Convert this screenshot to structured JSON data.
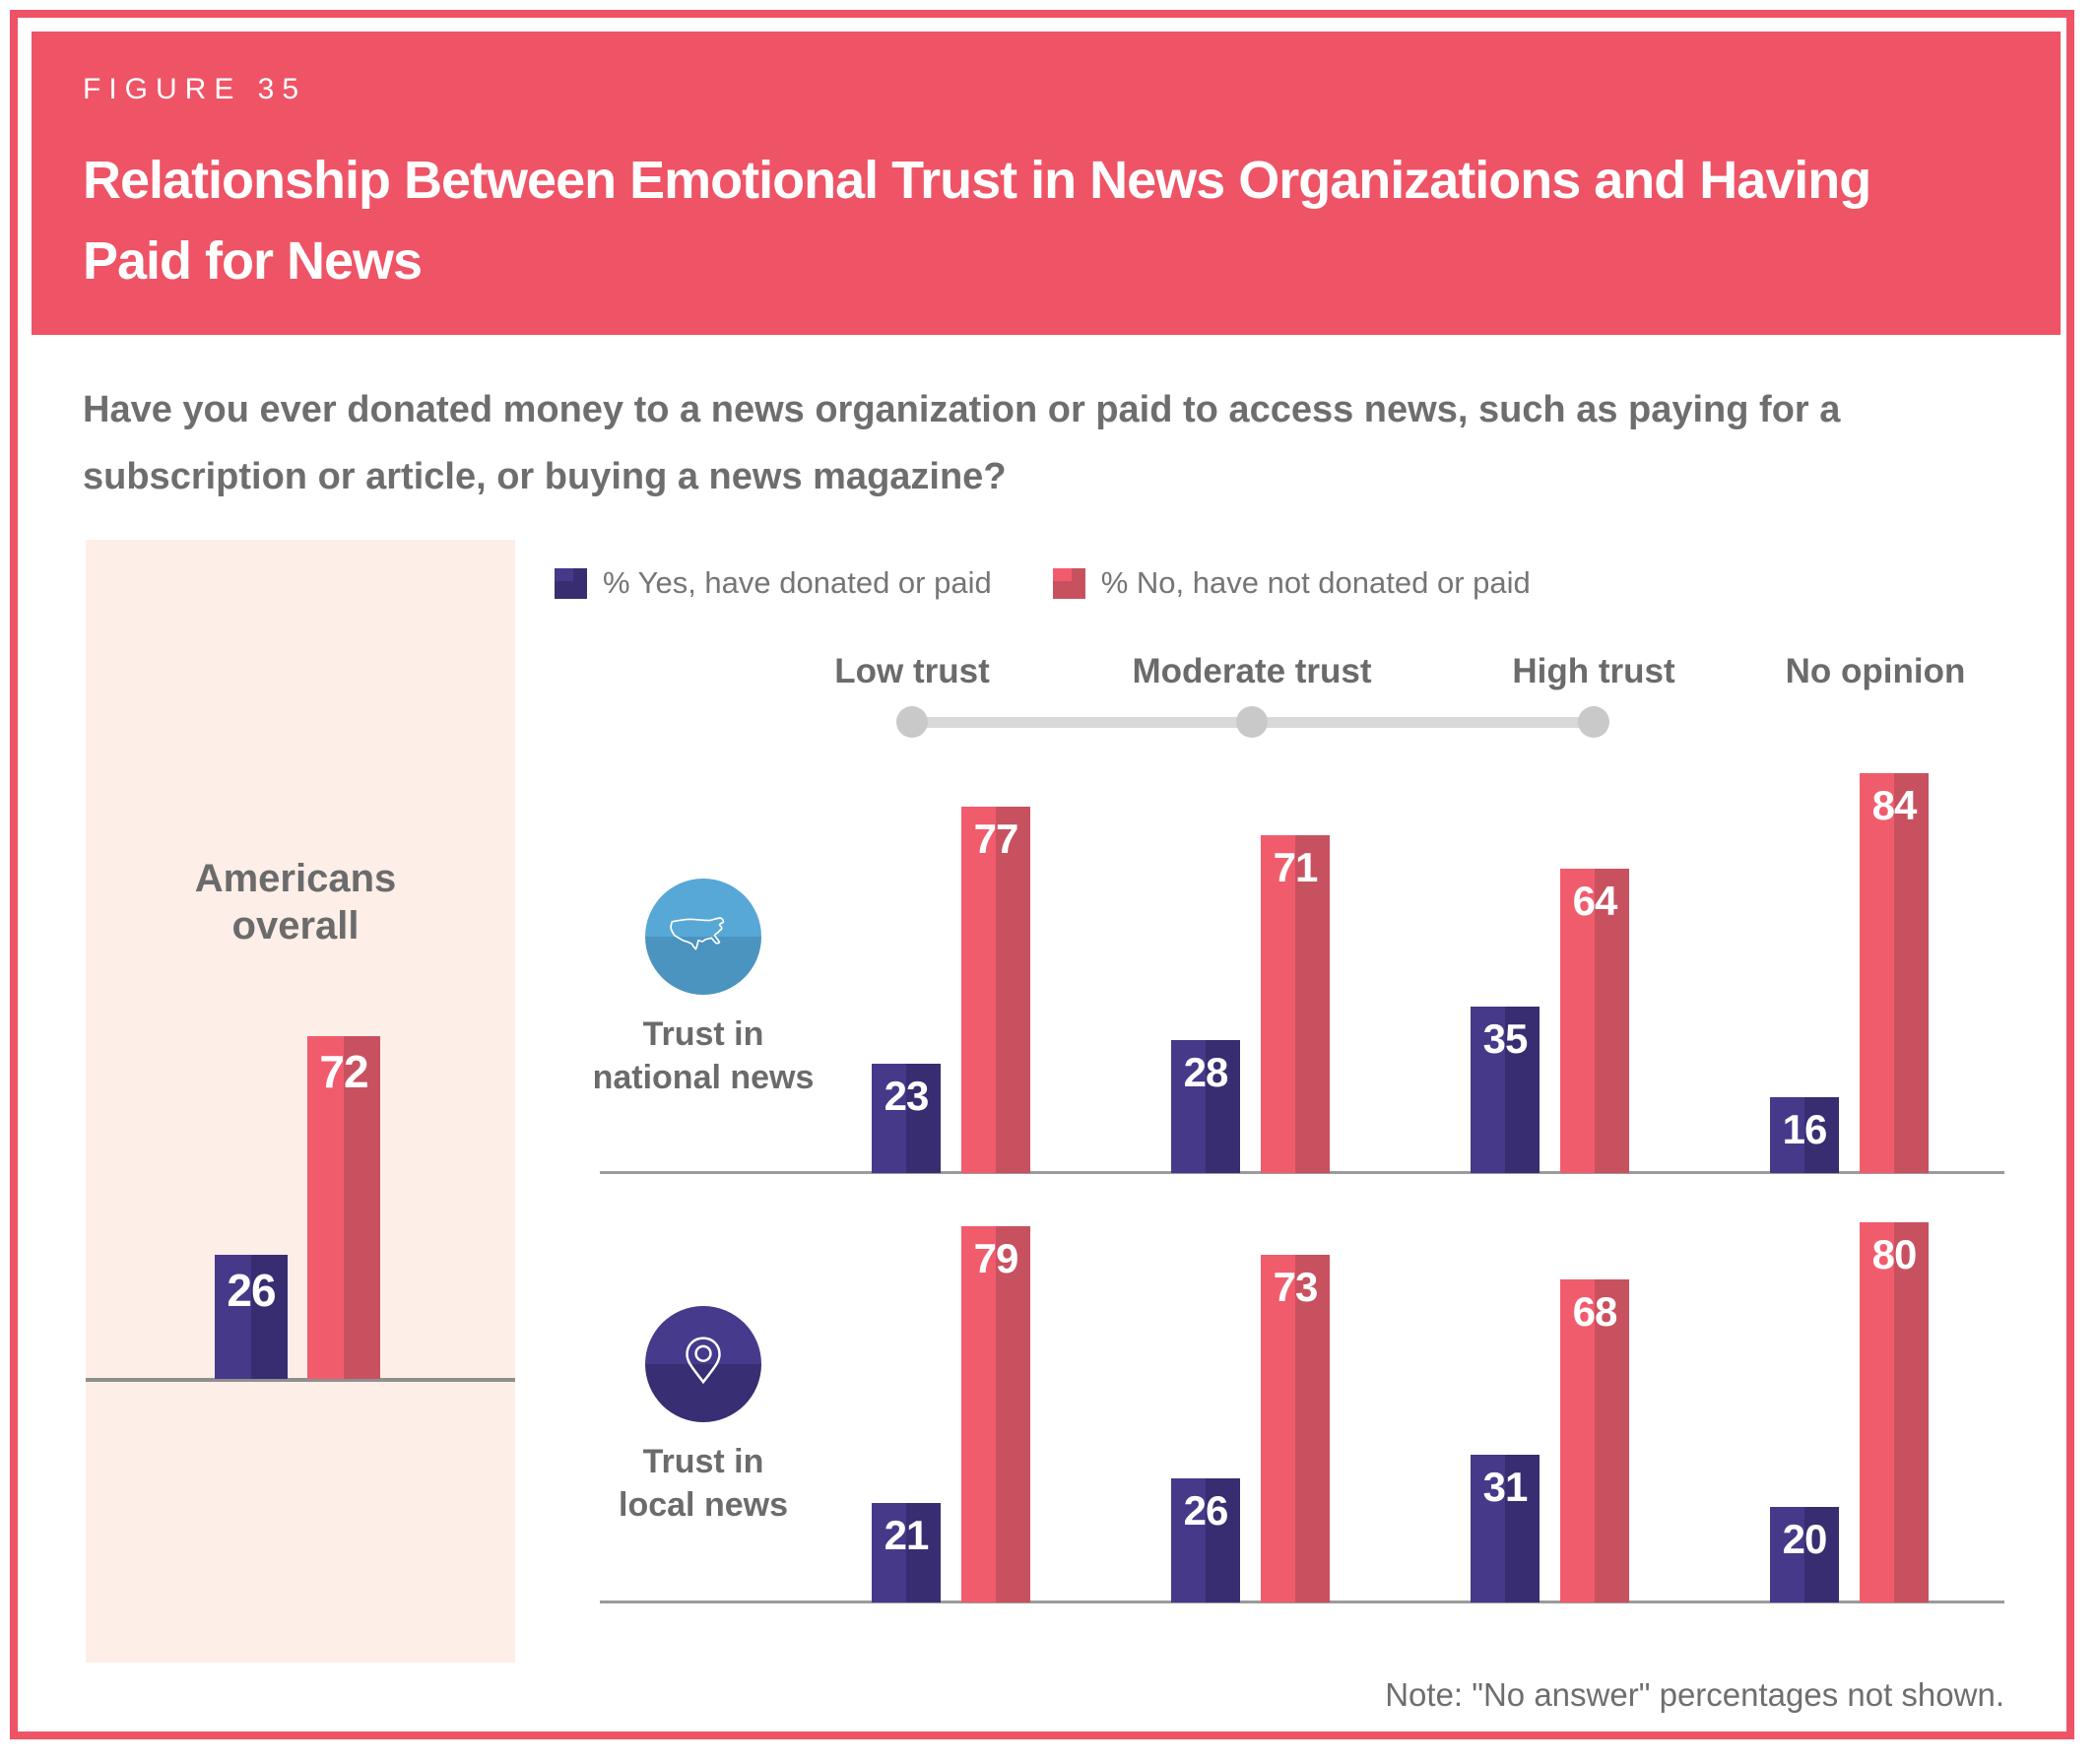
{
  "figure_label": "FIGURE 35",
  "title_lines": [
    "Relationship Between Emotional Trust in News Organizations and Having",
    "Paid for News"
  ],
  "question_lines": [
    "Have you ever donated money to a news organization or paid to access news, such as paying for a",
    "subscription or article, or buying a news magazine?"
  ],
  "legend": [
    {
      "label": "% Yes, have donated or paid"
    },
    {
      "label": "% No, have not donated or paid"
    }
  ],
  "note": "Note: \"No answer\" percentages not shown.",
  "colors": {
    "accent_red": "#ef5366",
    "bar_red_light": "#f15c6c",
    "bar_red_dark": "#c85160",
    "bar_purple_light": "#46398a",
    "bar_purple_dark": "#382d70",
    "panel_bg": "#fdeee7",
    "icon_blue": "#57a8d6",
    "icon_purple": "#453a8c",
    "text_gray": "#6e6e6e",
    "axis_gray": "#9b9b9b",
    "slider_gray": "#d8d8d8"
  },
  "chart_data": {
    "type": "bar",
    "unit": "%",
    "ylim": [
      0,
      100
    ],
    "grid": false,
    "legend_position": "top",
    "series": [
      {
        "name": "% Yes, have donated or paid",
        "color_light": "#46398a",
        "color_dark": "#382d70"
      },
      {
        "name": "% No, have not donated or paid",
        "color_light": "#f15c6c",
        "color_dark": "#c85160"
      }
    ],
    "overall": {
      "label": "Americans overall",
      "label_lines": [
        "Americans",
        "overall"
      ],
      "yes": 26,
      "no": 72
    },
    "trust_levels": [
      "Low trust",
      "Moderate trust",
      "High trust",
      "No opinion"
    ],
    "groups": [
      {
        "label": "Trust in national news",
        "label_lines": [
          "Trust in",
          "national news"
        ],
        "icon": "us-map-icon",
        "values": [
          {
            "level": "Low trust",
            "yes": 23,
            "no": 77
          },
          {
            "level": "Moderate trust",
            "yes": 28,
            "no": 71
          },
          {
            "level": "High trust",
            "yes": 35,
            "no": 64
          },
          {
            "level": "No opinion",
            "yes": 16,
            "no": 84
          }
        ]
      },
      {
        "label": "Trust in local news",
        "label_lines": [
          "Trust in",
          "local news"
        ],
        "icon": "location-pin-icon",
        "values": [
          {
            "level": "Low trust",
            "yes": 21,
            "no": 79
          },
          {
            "level": "Moderate trust",
            "yes": 26,
            "no": 73
          },
          {
            "level": "High trust",
            "yes": 31,
            "no": 68
          },
          {
            "level": "No opinion",
            "yes": 20,
            "no": 80
          }
        ]
      }
    ]
  }
}
